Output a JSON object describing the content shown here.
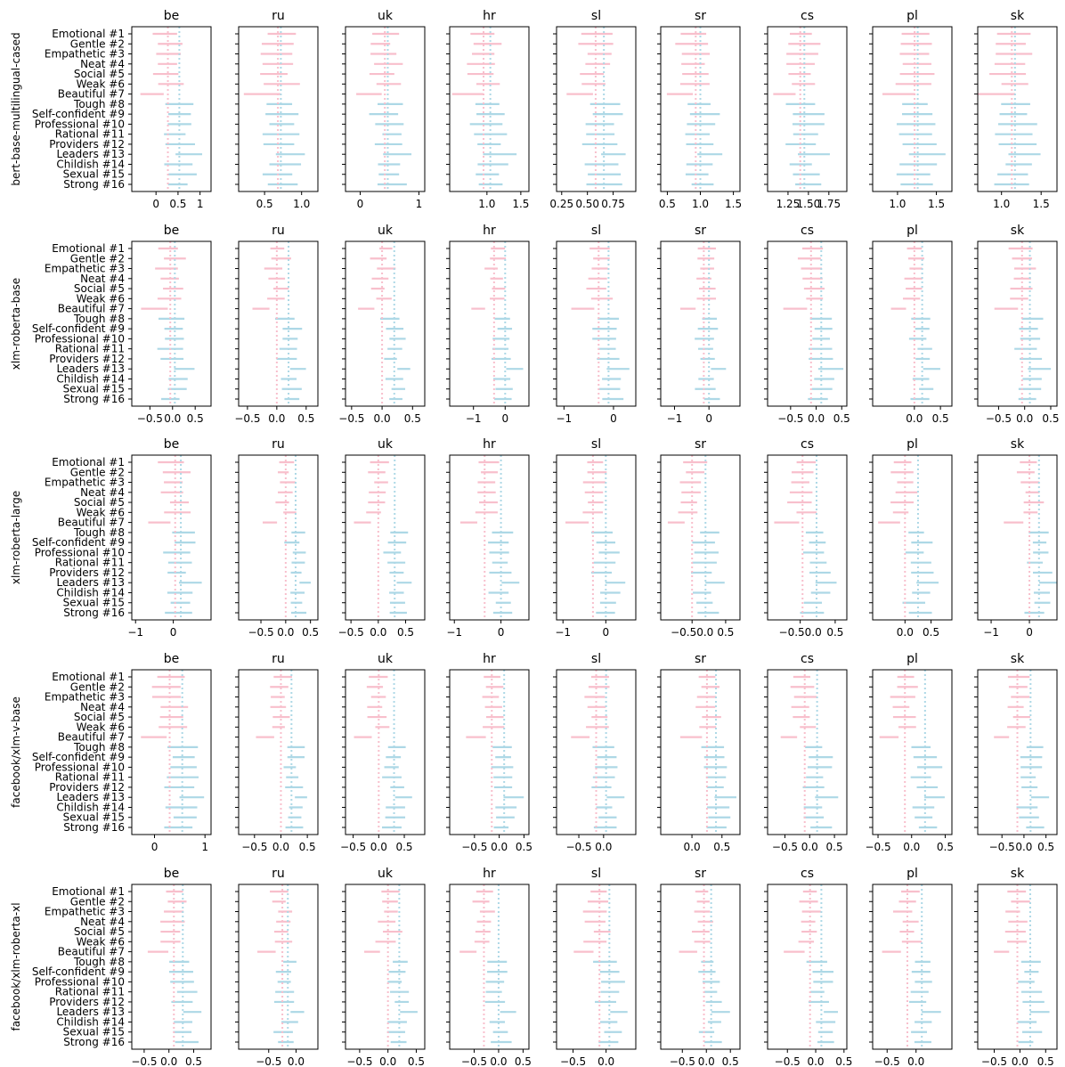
{
  "chart_data": {
    "type": "range-bar-grid",
    "languages": [
      "be",
      "ru",
      "uk",
      "hr",
      "sl",
      "sr",
      "cs",
      "pl",
      "sk"
    ],
    "categories": [
      "Emotional #1",
      "Gentle #2",
      "Empathetic #3",
      "Neat #4",
      "Social #5",
      "Weak #6",
      "Beautiful #7",
      "Tough #8",
      "Self-confident #9",
      "Professional #10",
      "Rational #11",
      "Providers #12",
      "Leaders #13",
      "Childish #14",
      "Sexual #15",
      "Strong #16"
    ],
    "feminine_count": 7,
    "colors": {
      "feminine": "#f8bfcc",
      "masculine": "#add8e6",
      "axis": "#000000"
    },
    "rows": [
      {
        "model": "bert-base-multilingual-cased",
        "panels": [
          {
            "lang": "be",
            "xlim": [
              -0.55,
              1.25
            ],
            "ticks": [
              "0",
              "0.5",
              "1"
            ],
            "tick_values": [
              0,
              0.5,
              1
            ],
            "mean_f": 0.27,
            "mean_m": 0.53,
            "half_width": 0.27
          },
          {
            "lang": "ru",
            "xlim": [
              0.15,
              1.22
            ],
            "ticks": [
              "0.5",
              "1.0"
            ],
            "tick_values": [
              0.5,
              1.0
            ],
            "mean_f": 0.68,
            "mean_m": 0.72,
            "half_width": 0.2
          },
          {
            "lang": "uk",
            "xlim": [
              -0.25,
              1.1
            ],
            "ticks": [
              "0",
              "1"
            ],
            "tick_values": [
              0,
              1
            ],
            "mean_f": 0.42,
            "mean_m": 0.47,
            "half_width": 0.2
          },
          {
            "lang": "hr",
            "xlim": [
              0.45,
              1.62
            ],
            "ticks": [
              "1.0",
              "1.5"
            ],
            "tick_values": [
              1.0,
              1.5
            ],
            "mean_f": 0.95,
            "mean_m": 1.05,
            "half_width": 0.2
          },
          {
            "lang": "sl",
            "xlim": [
              0.2,
              0.97
            ],
            "ticks": [
              "0.25",
              "0.50",
              "0.75"
            ],
            "tick_values": [
              0.25,
              0.5,
              0.75
            ],
            "mean_f": 0.58,
            "mean_m": 0.66,
            "half_width": 0.14
          },
          {
            "lang": "sr",
            "xlim": [
              0.4,
              1.6
            ],
            "ticks": [
              "0.5",
              "1.0",
              "1.5"
            ],
            "tick_values": [
              0.5,
              1.0,
              1.5
            ],
            "mean_f": 0.93,
            "mean_m": 1.0,
            "half_width": 0.2
          },
          {
            "lang": "cs",
            "xlim": [
              1.0,
              1.97
            ],
            "ticks": [
              "1.25",
              "1.50",
              "1.75"
            ],
            "tick_values": [
              1.25,
              1.5,
              1.75
            ],
            "mean_f": 1.4,
            "mean_m": 1.45,
            "half_width": 0.16
          },
          {
            "lang": "pl",
            "xlim": [
              0.68,
              1.7
            ],
            "ticks": [
              "1.0",
              "1.5"
            ],
            "tick_values": [
              1.0,
              1.5
            ],
            "mean_f": 1.22,
            "mean_m": 1.26,
            "half_width": 0.2
          },
          {
            "lang": "sk",
            "xlim": [
              0.7,
              1.7
            ],
            "ticks": [
              "1.0",
              "1.5"
            ],
            "tick_values": [
              1.0,
              1.5
            ],
            "mean_f": 1.13,
            "mean_m": 1.17,
            "half_width": 0.2
          }
        ]
      },
      {
        "model": "xlm-roberta-base",
        "panels": [
          {
            "lang": "be",
            "xlim": [
              -0.9,
              0.85
            ],
            "ticks": [
              "−0.5",
              "0.0",
              "0.5"
            ],
            "tick_values": [
              -0.5,
              0,
              0.5
            ],
            "mean_f": -0.05,
            "mean_m": 0.05,
            "half_width": 0.25
          },
          {
            "lang": "ru",
            "xlim": [
              -0.65,
              0.7
            ],
            "ticks": [
              "−0.5",
              "0.0",
              "0.5"
            ],
            "tick_values": [
              -0.5,
              0,
              0.5
            ],
            "mean_f": 0.0,
            "mean_m": 0.2,
            "half_width": 0.14
          },
          {
            "lang": "uk",
            "xlim": [
              -0.6,
              0.7
            ],
            "ticks": [
              "−0.5",
              "0.0",
              "0.5"
            ],
            "tick_values": [
              -0.5,
              0,
              0.5
            ],
            "mean_f": 0.0,
            "mean_m": 0.2,
            "half_width": 0.13
          },
          {
            "lang": "hr",
            "xlim": [
              -1.75,
              0.75
            ],
            "ticks": [
              "−1",
              "0"
            ],
            "tick_values": [
              -1,
              0
            ],
            "mean_f": -0.35,
            "mean_m": 0.0,
            "half_width": 0.25
          },
          {
            "lang": "sl",
            "xlim": [
              -1.15,
              0.45
            ],
            "ticks": [
              "−1",
              "0"
            ],
            "tick_values": [
              -1,
              0
            ],
            "mean_f": -0.3,
            "mean_m": -0.1,
            "half_width": 0.2
          },
          {
            "lang": "sr",
            "xlim": [
              -1.4,
              0.9
            ],
            "ticks": [
              "−1",
              "0"
            ],
            "tick_values": [
              -1,
              0
            ],
            "mean_f": -0.15,
            "mean_m": 0.0,
            "half_width": 0.25
          },
          {
            "lang": "cs",
            "xlim": [
              -0.95,
              0.6
            ],
            "ticks": [
              "−0.5",
              "0.0",
              "0.5"
            ],
            "tick_values": [
              -0.5,
              0,
              0.5
            ],
            "mean_f": -0.1,
            "mean_m": 0.1,
            "half_width": 0.2
          },
          {
            "lang": "pl",
            "xlim": [
              -0.8,
              0.72
            ],
            "ticks": [
              "0.0",
              "0.5"
            ],
            "tick_values": [
              0,
              0.5
            ],
            "mean_f": 0.0,
            "mean_m": 0.15,
            "half_width": 0.15
          },
          {
            "lang": "sk",
            "xlim": [
              -0.9,
              0.62
            ],
            "ticks": [
              "−0.5",
              "0.0",
              "0.5"
            ],
            "tick_values": [
              -0.5,
              0,
              0.5
            ],
            "mean_f": -0.05,
            "mean_m": 0.1,
            "half_width": 0.2
          }
        ]
      },
      {
        "model": "xlm-roberta-large",
        "panels": [
          {
            "lang": "be",
            "xlim": [
              -1.1,
              1.0
            ],
            "ticks": [
              "−1",
              "0"
            ],
            "tick_values": [
              -1,
              0
            ],
            "mean_f": 0.05,
            "mean_m": 0.2,
            "half_width": 0.3
          },
          {
            "lang": "ru",
            "xlim": [
              -0.95,
              0.65
            ],
            "ticks": [
              "−0.5",
              "0.0",
              "0.5"
            ],
            "tick_values": [
              -0.5,
              0,
              0.5
            ],
            "mean_f": 0.0,
            "mean_m": 0.2,
            "half_width": 0.13
          },
          {
            "lang": "uk",
            "xlim": [
              -0.6,
              0.85
            ],
            "ticks": [
              "−0.5",
              "0.0",
              "0.5"
            ],
            "tick_values": [
              -0.5,
              0,
              0.5
            ],
            "mean_f": 0.0,
            "mean_m": 0.3,
            "half_width": 0.14
          },
          {
            "lang": "hr",
            "xlim": [
              -1.1,
              0.6
            ],
            "ticks": [
              "−1",
              "0"
            ],
            "tick_values": [
              -1,
              0
            ],
            "mean_f": -0.35,
            "mean_m": 0.0,
            "half_width": 0.2
          },
          {
            "lang": "sl",
            "xlim": [
              -1.15,
              0.7
            ],
            "ticks": [
              "−1",
              "0"
            ],
            "tick_values": [
              -1,
              0
            ],
            "mean_f": -0.3,
            "mean_m": 0.0,
            "half_width": 0.22
          },
          {
            "lang": "sr",
            "xlim": [
              -0.95,
              0.82
            ],
            "ticks": [
              "−0.50.0",
              "0.5"
            ],
            "tick_values": [
              -0.25,
              0.5
            ],
            "mean_f": -0.25,
            "mean_m": 0.05,
            "half_width": 0.22
          },
          {
            "lang": "cs",
            "xlim": [
              -0.95,
              0.75
            ],
            "ticks": [
              "−0.50.0",
              "0.5"
            ],
            "tick_values": [
              -0.25,
              0.5
            ],
            "mean_f": -0.2,
            "mean_m": 0.1,
            "half_width": 0.22
          },
          {
            "lang": "pl",
            "xlim": [
              -0.62,
              0.9
            ],
            "ticks": [
              "0.0",
              "0.5"
            ],
            "tick_values": [
              0,
              0.5
            ],
            "mean_f": 0.0,
            "mean_m": 0.25,
            "half_width": 0.18
          },
          {
            "lang": "sk",
            "xlim": [
              -1.35,
              0.72
            ],
            "ticks": [
              "−1",
              "0"
            ],
            "tick_values": [
              -1,
              0
            ],
            "mean_f": 0.0,
            "mean_m": 0.25,
            "half_width": 0.22
          }
        ]
      },
      {
        "model": "facebook/xlm-v-base",
        "panels": [
          {
            "lang": "be",
            "xlim": [
              -0.45,
              1.12
            ],
            "ticks": [
              "0",
              "1"
            ],
            "tick_values": [
              0,
              1
            ],
            "mean_f": 0.3,
            "mean_m": 0.55,
            "half_width": 0.26
          },
          {
            "lang": "ru",
            "xlim": [
              -0.8,
              0.7
            ],
            "ticks": [
              "−0.5",
              "0.0",
              "0.5"
            ],
            "tick_values": [
              -0.5,
              0,
              0.5
            ],
            "mean_f": 0.0,
            "mean_m": 0.2,
            "half_width": 0.14
          },
          {
            "lang": "uk",
            "xlim": [
              -0.65,
              0.9
            ],
            "ticks": [
              "−0.5",
              "0.0",
              "0.5"
            ],
            "tick_values": [
              -0.5,
              0,
              0.5
            ],
            "mean_f": 0.0,
            "mean_m": 0.3,
            "half_width": 0.16
          },
          {
            "lang": "hr",
            "xlim": [
              -1.0,
              0.6
            ],
            "ticks": [
              "−0.5",
              "0.0",
              "0.5"
            ],
            "tick_values": [
              -0.5,
              0,
              0.5
            ],
            "mean_f": -0.15,
            "mean_m": 0.1,
            "half_width": 0.18
          },
          {
            "lang": "sl",
            "xlim": [
              -0.95,
              0.65
            ],
            "ticks": [
              "−0.5",
              "0.0"
            ],
            "tick_values": [
              -0.5,
              0
            ],
            "mean_f": -0.15,
            "mean_m": 0.05,
            "half_width": 0.2
          },
          {
            "lang": "sr",
            "xlim": [
              -0.52,
              0.8
            ],
            "ticks": [
              "0.0",
              "0.5"
            ],
            "tick_values": [
              0,
              0.5
            ],
            "mean_f": 0.25,
            "mean_m": 0.4,
            "half_width": 0.16
          },
          {
            "lang": "cs",
            "xlim": [
              -0.85,
              0.75
            ],
            "ticks": [
              "−0.5",
              "0.0",
              "0.5"
            ],
            "tick_values": [
              -0.5,
              0,
              0.5
            ],
            "mean_f": -0.1,
            "mean_m": 0.15,
            "half_width": 0.2
          },
          {
            "lang": "pl",
            "xlim": [
              -0.58,
              0.6
            ],
            "ticks": [
              "−0.5",
              "0.0",
              "0.5"
            ],
            "tick_values": [
              -0.5,
              0,
              0.5
            ],
            "mean_f": -0.1,
            "mean_m": 0.2,
            "half_width": 0.15
          },
          {
            "lang": "sk",
            "xlim": [
              -1.05,
              0.75
            ],
            "ticks": [
              "−0.5",
              "0.0",
              "0.5"
            ],
            "tick_values": [
              -0.5,
              0,
              0.5
            ],
            "mean_f": -0.15,
            "mean_m": 0.15,
            "half_width": 0.2
          }
        ]
      },
      {
        "model": "facebook/xlm-roberta-xl",
        "panels": [
          {
            "lang": "be",
            "xlim": [
              -0.75,
              0.85
            ],
            "ticks": [
              "−0.5",
              "0.0",
              "0.5"
            ],
            "tick_values": [
              -0.5,
              0,
              0.5
            ],
            "mean_f": 0.1,
            "mean_m": 0.28,
            "half_width": 0.2
          },
          {
            "lang": "ru",
            "xlim": [
              -1.05,
              0.4
            ],
            "ticks": [
              "−0.5",
              "0.0"
            ],
            "tick_values": [
              -0.5,
              0
            ],
            "mean_f": -0.25,
            "mean_m": -0.15,
            "half_width": 0.15
          },
          {
            "lang": "uk",
            "xlim": [
              -0.75,
              0.65
            ],
            "ticks": [
              "−0.5",
              "0.0",
              "0.5"
            ],
            "tick_values": [
              -0.5,
              0,
              0.5
            ],
            "mean_f": 0.0,
            "mean_m": 0.2,
            "half_width": 0.15
          },
          {
            "lang": "hr",
            "xlim": [
              -1.0,
              0.62
            ],
            "ticks": [
              "−0.5",
              "0.0",
              "0.5"
            ],
            "tick_values": [
              -0.5,
              0,
              0.5
            ],
            "mean_f": -0.3,
            "mean_m": 0.0,
            "half_width": 0.18
          },
          {
            "lang": "sl",
            "xlim": [
              -0.75,
              0.45
            ],
            "ticks": [
              "−0.5",
              "0.0"
            ],
            "tick_values": [
              -0.5,
              0
            ],
            "mean_f": -0.1,
            "mean_m": 0.05,
            "half_width": 0.15
          },
          {
            "lang": "sr",
            "xlim": [
              -0.95,
              0.7
            ],
            "ticks": [
              "−0.5",
              "0.0",
              "0.5"
            ],
            "tick_values": [
              -0.5,
              0,
              0.5
            ],
            "mean_f": -0.05,
            "mean_m": 0.1,
            "half_width": 0.16
          },
          {
            "lang": "cs",
            "xlim": [
              -0.85,
              0.55
            ],
            "ticks": [
              "−0.5",
              "0.0",
              "0.5"
            ],
            "tick_values": [
              -0.5,
              0,
              0.5
            ],
            "mean_f": -0.1,
            "mean_m": 0.1,
            "half_width": 0.15
          },
          {
            "lang": "pl",
            "xlim": [
              -0.75,
              0.62
            ],
            "ticks": [
              "−0.5",
              "0.0"
            ],
            "tick_values": [
              -0.5,
              0
            ],
            "mean_f": -0.15,
            "mean_m": 0.1,
            "half_width": 0.15
          },
          {
            "lang": "sk",
            "xlim": [
              -0.82,
              0.72
            ],
            "ticks": [
              "−0.5",
              "0.0",
              "0.5"
            ],
            "tick_values": [
              -0.5,
              0,
              0.5
            ],
            "mean_f": -0.05,
            "mean_m": 0.2,
            "half_width": 0.17
          }
        ]
      }
    ]
  }
}
